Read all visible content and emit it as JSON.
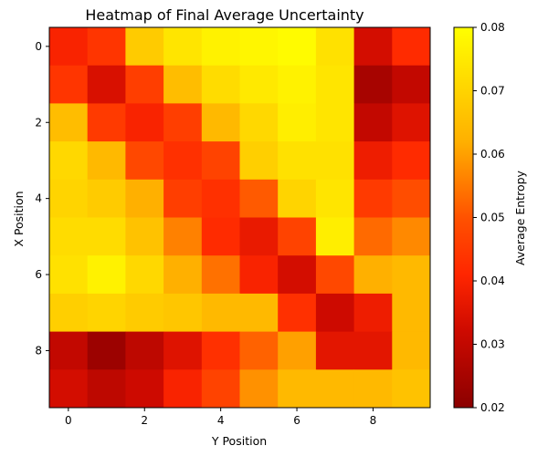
{
  "chart_data": {
    "type": "heatmap",
    "title": "Heatmap of Final Average Uncertainty",
    "xlabel": "Y Position",
    "ylabel": "X Position",
    "colorbar_label": "Average Entropy",
    "colormap": "hot",
    "vmin": 0.02,
    "vmax": 0.08,
    "columns": [
      0,
      1,
      2,
      3,
      4,
      5,
      6,
      7,
      8,
      9
    ],
    "rows": [
      0,
      1,
      2,
      3,
      4,
      5,
      6,
      7,
      8,
      9
    ],
    "x_ticks": [
      "0",
      "2",
      "4",
      "6",
      "8"
    ],
    "y_ticks": [
      "0",
      "2",
      "4",
      "6",
      "8"
    ],
    "colorbar_ticks": [
      "0.02",
      "0.03",
      "0.04",
      "0.05",
      "0.06",
      "0.07",
      "0.08"
    ],
    "values": [
      [
        0.04,
        0.044,
        0.068,
        0.074,
        0.077,
        0.078,
        0.079,
        0.073,
        0.033,
        0.042
      ],
      [
        0.044,
        0.034,
        0.046,
        0.065,
        0.072,
        0.075,
        0.077,
        0.074,
        0.025,
        0.03
      ],
      [
        0.065,
        0.045,
        0.04,
        0.046,
        0.064,
        0.071,
        0.076,
        0.074,
        0.03,
        0.035
      ],
      [
        0.071,
        0.064,
        0.048,
        0.043,
        0.047,
        0.069,
        0.073,
        0.073,
        0.038,
        0.042
      ],
      [
        0.07,
        0.068,
        0.062,
        0.046,
        0.043,
        0.051,
        0.07,
        0.074,
        0.045,
        0.049
      ],
      [
        0.072,
        0.072,
        0.066,
        0.056,
        0.042,
        0.037,
        0.047,
        0.076,
        0.053,
        0.057
      ],
      [
        0.073,
        0.077,
        0.071,
        0.062,
        0.054,
        0.04,
        0.033,
        0.048,
        0.062,
        0.064
      ],
      [
        0.069,
        0.07,
        0.068,
        0.067,
        0.064,
        0.064,
        0.043,
        0.032,
        0.038,
        0.064
      ],
      [
        0.03,
        0.023,
        0.029,
        0.035,
        0.043,
        0.052,
        0.06,
        0.036,
        0.036,
        0.064
      ],
      [
        0.033,
        0.029,
        0.032,
        0.04,
        0.047,
        0.058,
        0.064,
        0.064,
        0.064,
        0.066
      ]
    ]
  }
}
